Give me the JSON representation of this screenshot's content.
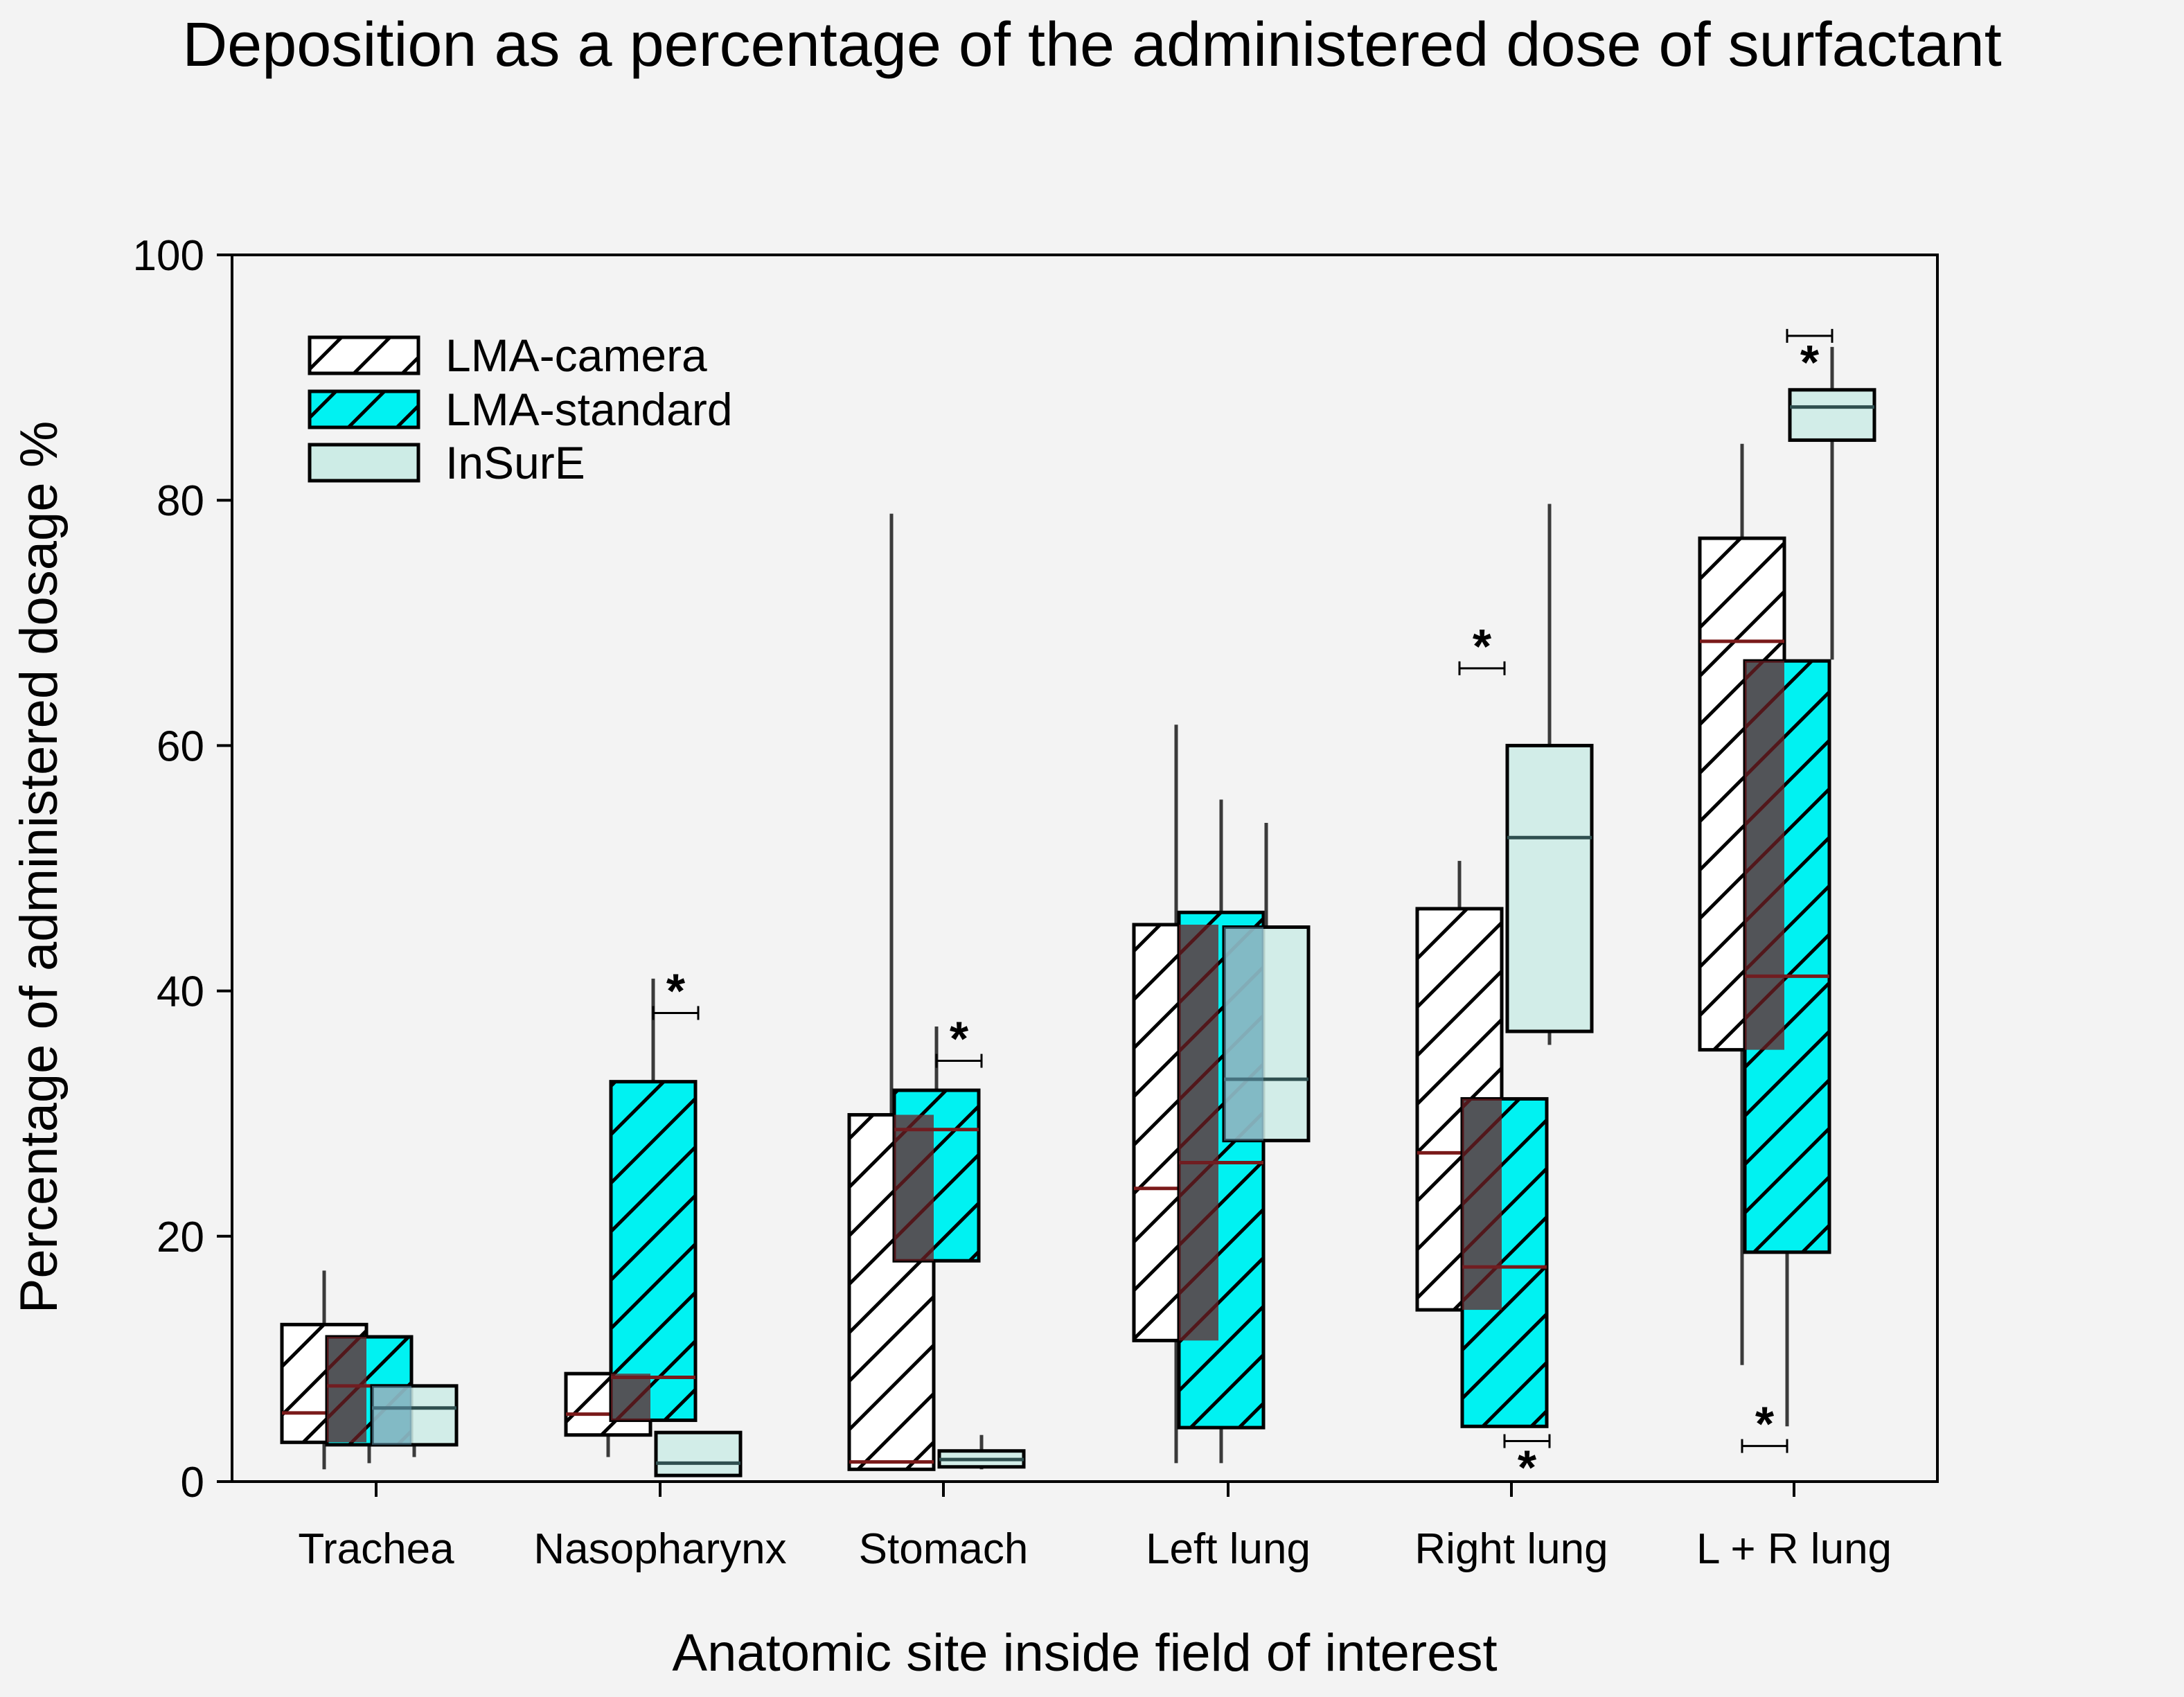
{
  "chart_data": {
    "type": "box",
    "title": "Deposition as a percentage of the administered dose of surfactant",
    "xlabel": "Anatomic site inside field of interest",
    "ylabel": "Percentage of administered dosage %",
    "ylim": [
      0,
      100
    ],
    "yticks": [
      0,
      20,
      40,
      60,
      80,
      100
    ],
    "categories": [
      "Trachea",
      "Nasopharynx",
      "Stomach",
      "Left lung",
      "Right lung",
      "L + R lung"
    ],
    "legend_position": "top-left",
    "series": [
      {
        "name": "LMA-camera",
        "fill": "#ffffff",
        "hatch": true,
        "boxes": [
          {
            "low": 1,
            "q1": 3.2,
            "median": 5.6,
            "q3": 12.8,
            "high": 17.2
          },
          {
            "low": 2,
            "q1": 3.8,
            "median": 5.5,
            "q3": 8.8,
            "high": 8.8
          },
          {
            "low": 1.0,
            "q1": 1.0,
            "median": 1.6,
            "q3": 29.9,
            "high": 78.9
          },
          {
            "low": 1.5,
            "q1": 11.5,
            "median": 23.9,
            "q3": 45.4,
            "high": 61.7
          },
          {
            "low": 14.0,
            "q1": 14.0,
            "median": 26.8,
            "q3": 46.7,
            "high": 50.6
          },
          {
            "low": 9.5,
            "q1": 35.2,
            "median": 68.5,
            "q3": 76.9,
            "high": 84.6
          }
        ]
      },
      {
        "name": "LMA-standard",
        "fill": "#00f2f2",
        "hatch": true,
        "boxes": [
          {
            "low": 1.5,
            "q1": 3.0,
            "median": 7.8,
            "q3": 11.8,
            "high": 11.8
          },
          {
            "low": 5,
            "q1": 5.0,
            "median": 8.5,
            "q3": 32.6,
            "high": 41.0
          },
          {
            "low": 18.0,
            "q1": 18.0,
            "median": 28.7,
            "q3": 31.9,
            "high": 37.1
          },
          {
            "low": 1.5,
            "q1": 4.4,
            "median": 26.0,
            "q3": 46.4,
            "high": 55.6
          },
          {
            "low": 4.5,
            "q1": 4.5,
            "median": 17.5,
            "q3": 31.2,
            "high": 31.2
          },
          {
            "low": 4.5,
            "q1": 18.7,
            "median": 41.2,
            "q3": 66.9,
            "high": 66.9
          }
        ]
      },
      {
        "name": "InSurE",
        "fill": "#cdece6",
        "hatch": false,
        "boxes": [
          {
            "low": 2,
            "q1": 3.0,
            "median": 6.0,
            "q3": 7.8,
            "high": 7.8
          },
          {
            "low": 0.5,
            "q1": 0.5,
            "median": 1.5,
            "q3": 4.0,
            "high": 4.0
          },
          {
            "low": 1.0,
            "q1": 1.2,
            "median": 1.8,
            "q3": 2.5,
            "high": 3.8
          },
          {
            "low": 27.8,
            "q1": 27.8,
            "median": 32.8,
            "q3": 45.2,
            "high": 53.7
          },
          {
            "low": 35.6,
            "q1": 36.7,
            "median": 52.5,
            "q3": 60.0,
            "high": 79.7
          },
          {
            "low": 67.0,
            "q1": 84.9,
            "median": 87.6,
            "q3": 89.0,
            "high": 92.5
          }
        ]
      }
    ],
    "significance": [
      {
        "category": 1,
        "from_series": 1,
        "to_series": 2,
        "y": 38.2,
        "label": "*",
        "label_side": "above"
      },
      {
        "category": 2,
        "from_series": 1,
        "to_series": 2,
        "y": 34.3,
        "label": "*",
        "label_side": "above"
      },
      {
        "category": 4,
        "from_series": 0,
        "to_series": 1,
        "y": 66.3,
        "label": "*",
        "label_side": "above"
      },
      {
        "category": 4,
        "from_series": 1,
        "to_series": 2,
        "y": 3.3,
        "label": "*",
        "label_side": "below"
      },
      {
        "category": 5,
        "from_series": 0,
        "to_series": 1,
        "y": 2.9,
        "label": "*",
        "label_side": "above"
      },
      {
        "category": 5,
        "from_series": 1,
        "to_series": 2,
        "y": 93.4,
        "label": "*",
        "label_side": "below"
      }
    ]
  },
  "colors": {
    "median_line": "#7a1a1a",
    "overlap_tint": "#6e1f24",
    "axis": "#000000"
  }
}
